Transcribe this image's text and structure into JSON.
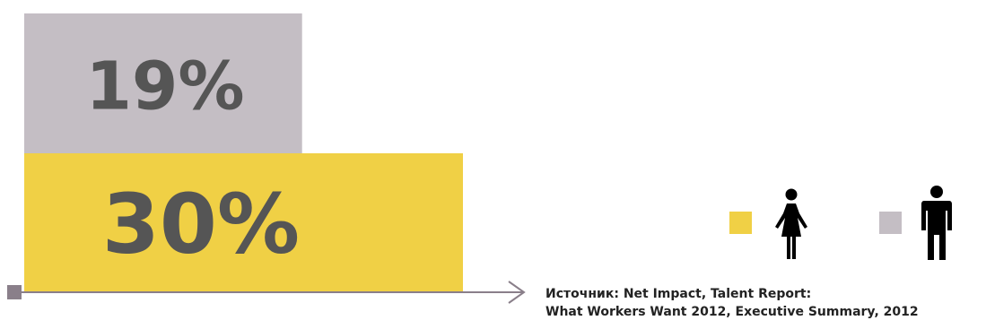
{
  "chart_data": {
    "type": "bar",
    "orientation": "horizontal",
    "overlapping": true,
    "series": [
      {
        "value": 19,
        "label": "19%",
        "color": "#c4bec4",
        "icon": "man-icon"
      },
      {
        "value": 30,
        "label": "30%",
        "color": "#f0d045",
        "icon": "woman-icon"
      }
    ],
    "axis_color": "#8a7f8a",
    "legend_position": "bottom-right"
  },
  "source": {
    "line1": "Источник: Net Impact, Talent Report:",
    "line2": "What Workers Want 2012, Executive Summary, 2012"
  }
}
